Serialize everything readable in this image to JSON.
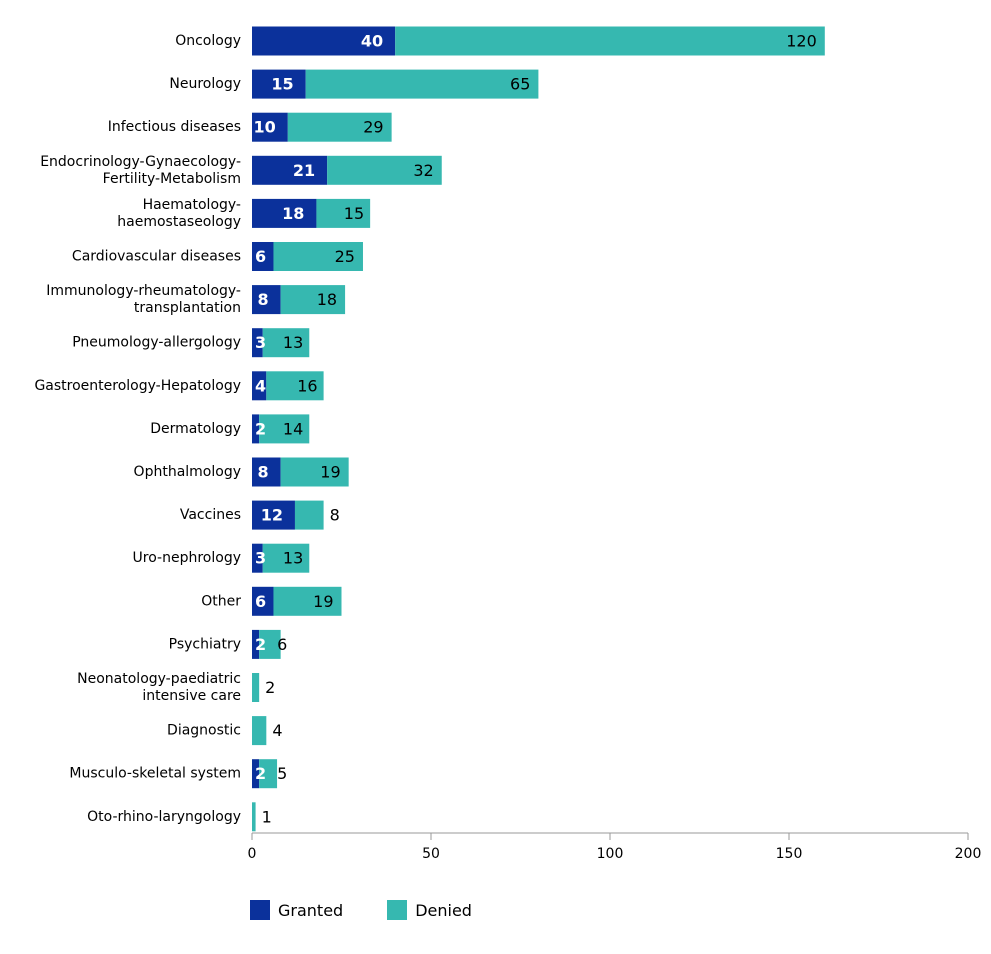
{
  "chart_data": {
    "type": "bar",
    "orientation": "horizontal",
    "stacked": true,
    "categories": [
      "Oncology",
      "Neurology",
      "Infectious diseases",
      "Endocrinology-Gynaecology-\nFertility-Metabolism",
      "Haematology-\nhaemostaseology",
      "Cardiovascular diseases",
      "Immunology-rheumatology-\ntransplantation",
      "Pneumology-allergology",
      "Gastroenterology-Hepatology",
      "Dermatology",
      "Ophthalmology",
      "Vaccines",
      "Uro-nephrology",
      "Other",
      "Psychiatry",
      "Neonatology-paediatric\nintensive care",
      "Diagnostic",
      "Musculo-skeletal system",
      "Oto-rhino-laryngology"
    ],
    "series": [
      {
        "name": "Granted",
        "color": "#0b319b",
        "values": [
          40,
          15,
          10,
          21,
          18,
          6,
          8,
          3,
          4,
          2,
          8,
          12,
          3,
          6,
          2,
          0,
          0,
          2,
          0
        ]
      },
      {
        "name": "Denied",
        "color": "#36b8b0",
        "values": [
          120,
          65,
          29,
          32,
          15,
          25,
          18,
          13,
          16,
          14,
          19,
          8,
          13,
          19,
          6,
          2,
          4,
          5,
          1
        ]
      }
    ],
    "xlim": [
      0,
      200
    ],
    "xticks": [
      0,
      50,
      100,
      150,
      200
    ],
    "legend_position": "bottom-left",
    "grid": false
  }
}
